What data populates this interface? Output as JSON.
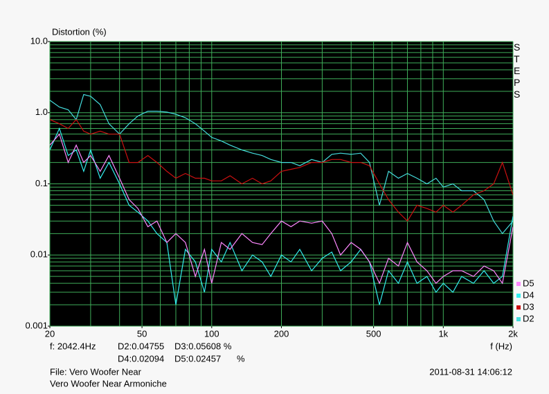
{
  "chart_data": {
    "type": "line",
    "y_label": "Distortion (%)",
    "x_label": "f (Hz)",
    "side_label": "STEPS",
    "xlog": true,
    "ylog": true,
    "grid": true,
    "xlim": [
      20,
      2000
    ],
    "ylim": [
      0.001,
      10
    ],
    "xticks": [
      20,
      50,
      100,
      200,
      500,
      {
        "value": 1000,
        "label": "1k"
      },
      {
        "value": 2000,
        "label": "2k"
      }
    ],
    "yticks": [
      {
        "value": 10,
        "label": "10.0"
      },
      {
        "value": 1,
        "label": "1.0"
      },
      0.1,
      0.01,
      0.001
    ],
    "xgrid": [
      20,
      30,
      40,
      50,
      60,
      70,
      80,
      90,
      100,
      200,
      300,
      400,
      500,
      600,
      700,
      800,
      900,
      1000,
      2000
    ],
    "ygrid": [
      0.001,
      0.002,
      0.003,
      0.004,
      0.005,
      0.006,
      0.007,
      0.008,
      0.009,
      0.01,
      0.02,
      0.03,
      0.04,
      0.05,
      0.06,
      0.07,
      0.08,
      0.09,
      0.1,
      0.2,
      0.3,
      0.4,
      0.5,
      0.6,
      0.7,
      0.8,
      0.9,
      1,
      2,
      3,
      4,
      5,
      6,
      7,
      8,
      9,
      10
    ],
    "legend": "bottom-right",
    "x": [
      20,
      22,
      24,
      26,
      28,
      30,
      33,
      36,
      40,
      44,
      48,
      53,
      58,
      64,
      70,
      77,
      85,
      93,
      100,
      110,
      120,
      135,
      150,
      165,
      180,
      200,
      220,
      240,
      270,
      300,
      330,
      360,
      400,
      440,
      480,
      530,
      580,
      640,
      700,
      770,
      850,
      930,
      1000,
      1100,
      1200,
      1350,
      1500,
      1650,
      1800,
      2000
    ],
    "series": [
      {
        "name": "D5",
        "color": "#ff88ff",
        "values": [
          0.35,
          0.5,
          0.2,
          0.35,
          0.2,
          0.25,
          0.15,
          0.25,
          0.12,
          0.06,
          0.045,
          0.025,
          0.03,
          0.015,
          0.02,
          0.015,
          0.005,
          0.012,
          0.004,
          0.015,
          0.012,
          0.02,
          0.015,
          0.014,
          0.02,
          0.03,
          0.025,
          0.03,
          0.028,
          0.03,
          0.02,
          0.01,
          0.015,
          0.012,
          0.008,
          0.004,
          0.009,
          0.007,
          0.015,
          0.008,
          0.006,
          0.004,
          0.005,
          0.006,
          0.006,
          0.005,
          0.007,
          0.006,
          0.004,
          0.025
        ]
      },
      {
        "name": "D4",
        "color": "#33eeee",
        "values": [
          0.3,
          0.6,
          0.25,
          0.3,
          0.15,
          0.3,
          0.12,
          0.2,
          0.1,
          0.05,
          0.04,
          0.03,
          0.02,
          0.015,
          0.002,
          0.012,
          0.008,
          0.003,
          0.012,
          0.008,
          0.015,
          0.006,
          0.01,
          0.008,
          0.005,
          0.01,
          0.008,
          0.012,
          0.006,
          0.009,
          0.011,
          0.006,
          0.008,
          0.012,
          0.008,
          0.002,
          0.006,
          0.004,
          0.008,
          0.004,
          0.005,
          0.003,
          0.004,
          0.003,
          0.005,
          0.004,
          0.006,
          0.004,
          0.005,
          0.035
        ]
      },
      {
        "name": "D3",
        "color": "#cc1111",
        "values": [
          0.8,
          0.7,
          0.6,
          0.8,
          0.55,
          0.5,
          0.55,
          0.5,
          0.5,
          0.2,
          0.2,
          0.25,
          0.2,
          0.15,
          0.12,
          0.14,
          0.12,
          0.12,
          0.11,
          0.11,
          0.13,
          0.1,
          0.12,
          0.1,
          0.11,
          0.15,
          0.16,
          0.17,
          0.2,
          0.2,
          0.22,
          0.22,
          0.2,
          0.2,
          0.18,
          0.1,
          0.06,
          0.04,
          0.03,
          0.05,
          0.045,
          0.04,
          0.05,
          0.04,
          0.05,
          0.07,
          0.08,
          0.1,
          0.2,
          0.07
        ]
      },
      {
        "name": "D2",
        "color": "#44dddd",
        "values": [
          1.5,
          1.2,
          1.1,
          0.8,
          1.8,
          1.7,
          1.3,
          0.7,
          0.5,
          0.7,
          0.9,
          1.05,
          1.05,
          1.02,
          0.95,
          0.85,
          0.7,
          0.55,
          0.45,
          0.4,
          0.35,
          0.3,
          0.27,
          0.25,
          0.22,
          0.2,
          0.2,
          0.18,
          0.22,
          0.2,
          0.26,
          0.27,
          0.26,
          0.27,
          0.2,
          0.05,
          0.15,
          0.12,
          0.14,
          0.12,
          0.1,
          0.12,
          0.09,
          0.1,
          0.08,
          0.08,
          0.06,
          0.03,
          0.02,
          0.03
        ]
      }
    ]
  },
  "readout": {
    "freq": "f: 2042.4Hz",
    "d2": "D2:0.04755",
    "d3": "D3:0.05608 %",
    "d4": "D4:0.02094",
    "d5": "D5:0.02457",
    "unit": "%"
  },
  "file": {
    "name": "File: Vero Woofer Near",
    "description": "Vero Woofer Near Armoniche",
    "timestamp": "2011-08-31 14:06:12"
  }
}
